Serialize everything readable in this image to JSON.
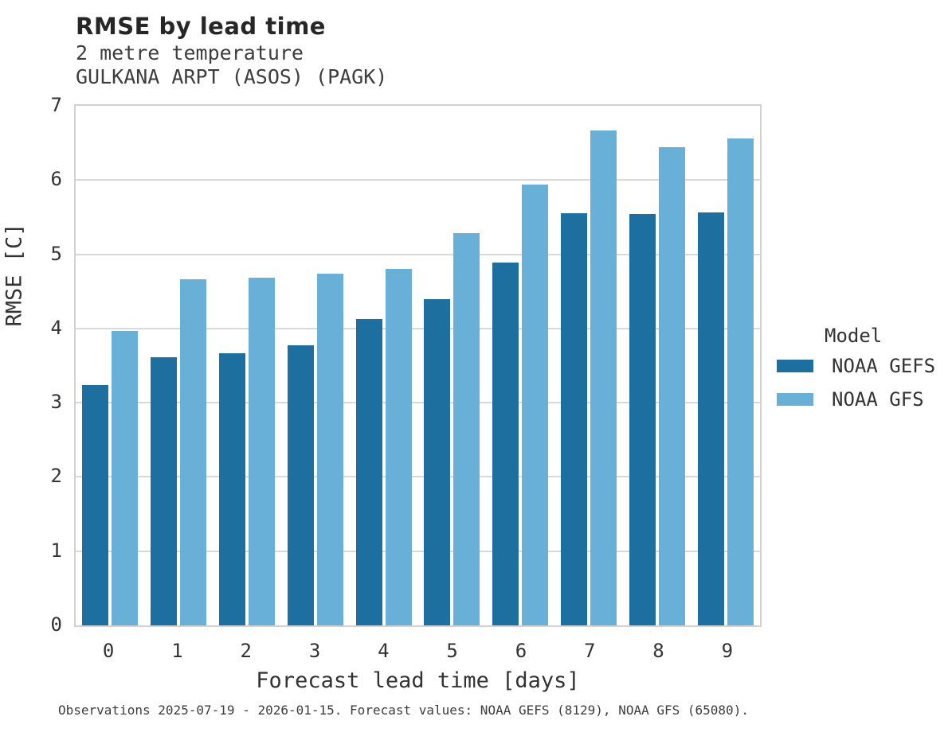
{
  "header": {
    "title": "RMSE by lead time",
    "subtitle_line1": "2 metre temperature",
    "subtitle_line2": "GULKANA ARPT (ASOS) (PAGK)"
  },
  "chart_data": {
    "type": "bar",
    "title": "RMSE by lead time",
    "subtitle": [
      "2 metre temperature",
      "GULKANA ARPT (ASOS) (PAGK)"
    ],
    "categories": [
      "0",
      "1",
      "2",
      "3",
      "4",
      "5",
      "6",
      "7",
      "8",
      "9"
    ],
    "series": [
      {
        "name": "NOAA GEFS",
        "color": "#1d6f9f",
        "values": [
          3.24,
          3.61,
          3.67,
          3.77,
          4.13,
          4.4,
          4.89,
          5.55,
          5.54,
          5.56
        ]
      },
      {
        "name": "NOAA GFS",
        "color": "#69b0d8",
        "values": [
          3.97,
          4.66,
          4.69,
          4.74,
          4.8,
          5.29,
          5.94,
          6.67,
          6.44,
          6.56
        ]
      }
    ],
    "xlabel": "Forecast lead time [days]",
    "ylabel": "RMSE [C]",
    "ylim": [
      0,
      7
    ],
    "yticks": [
      0,
      1,
      2,
      3,
      4,
      5,
      6,
      7
    ],
    "grid": "horizontal",
    "grid_color": "#d9d9d9",
    "plot_border_color": "#d2d2d2",
    "legend_title": "Model",
    "legend_position": "right"
  },
  "legend": {
    "title": "Model",
    "entries": [
      {
        "label": "NOAA GEFS",
        "color": "#1d6f9f"
      },
      {
        "label": "NOAA GFS",
        "color": "#69b0d8"
      }
    ]
  },
  "footer": {
    "caption": "Observations 2025-07-19 - 2026-01-15. Forecast values: NOAA GEFS (8129), NOAA GFS (65080)."
  }
}
